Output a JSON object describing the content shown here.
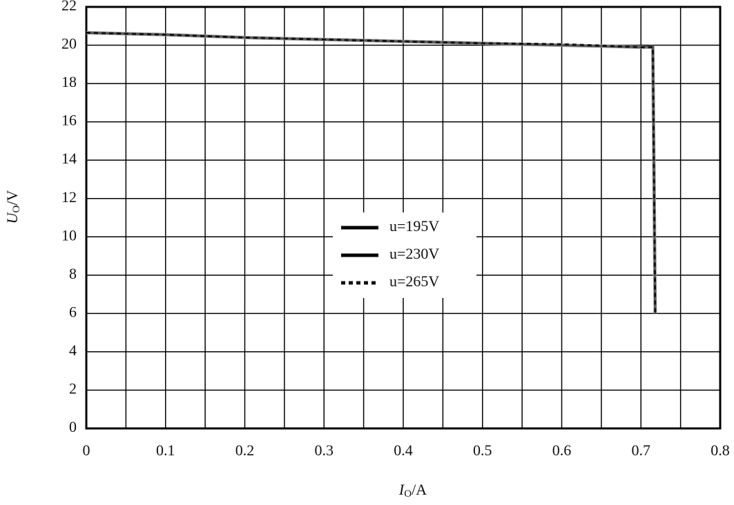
{
  "chart_data": {
    "type": "line",
    "xlabel": {
      "symbol": "I",
      "sub": "O",
      "unit": "/A"
    },
    "ylabel": {
      "symbol": "U",
      "sub": "O",
      "unit": "/V"
    },
    "x": [
      0,
      0.1,
      0.2,
      0.3,
      0.4,
      0.5,
      0.6,
      0.7,
      0.715,
      0.718
    ],
    "series": [
      {
        "name": "u=195V",
        "color": "#9a9a9a",
        "style": "solid",
        "values": [
          20.65,
          20.55,
          20.4,
          20.3,
          20.2,
          20.1,
          20.0,
          19.9,
          19.9,
          6
        ]
      },
      {
        "name": "u=230V",
        "color": "#555555",
        "style": "solid",
        "values": [
          20.65,
          20.55,
          20.4,
          20.3,
          20.2,
          20.1,
          20.0,
          19.9,
          19.95,
          6
        ]
      },
      {
        "name": "u=265V",
        "color": "#111111",
        "style": "dashed",
        "values": [
          20.65,
          20.55,
          20.4,
          20.3,
          20.2,
          20.1,
          20.05,
          19.9,
          19.9,
          6
        ]
      }
    ],
    "xlim": [
      0,
      0.8
    ],
    "xticks": [
      0,
      0.1,
      0.2,
      0.3,
      0.4,
      0.5,
      0.6,
      0.7,
      0.8
    ],
    "x_minor_grid": [
      0.05,
      0.15,
      0.25,
      0.35,
      0.45,
      0.55,
      0.65,
      0.75
    ],
    "ylim": [
      0,
      22
    ],
    "yticks": [
      0,
      2,
      4,
      6,
      8,
      10,
      12,
      14,
      16,
      18,
      20,
      22
    ],
    "grid": true,
    "legend": "center"
  }
}
